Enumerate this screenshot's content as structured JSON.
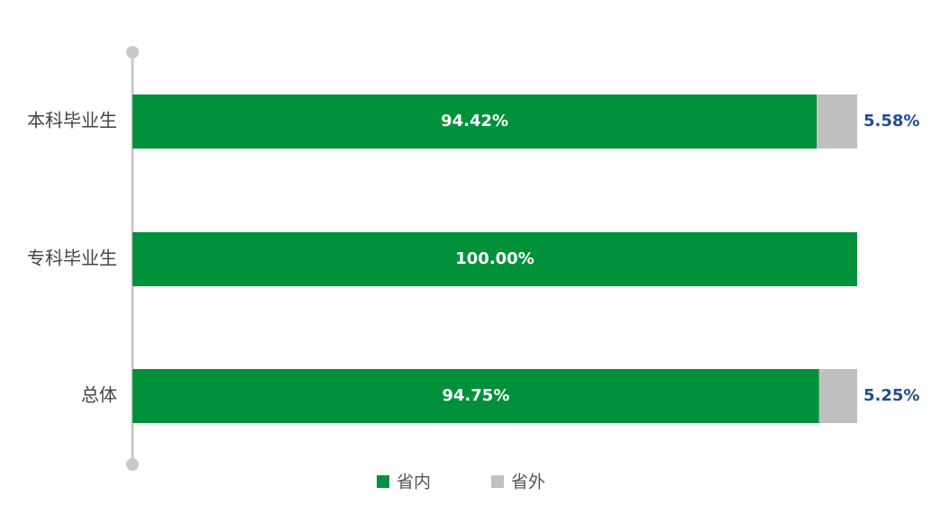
{
  "chart_data": {
    "type": "stacked-bar-horizontal",
    "categories": [
      "本科毕业生",
      "专科毕业生",
      "总体"
    ],
    "series": [
      {
        "name": "省内",
        "color": "#00913a",
        "values": [
          94.42,
          100,
          94.75
        ],
        "value_labels": [
          "94.42%",
          "100.00%",
          "94.75%"
        ]
      },
      {
        "name": "省外",
        "color": "#c0c0c0",
        "values": [
          5.58,
          0,
          5.25
        ],
        "value_labels": [
          "5.58%",
          null,
          "5.25%"
        ]
      }
    ],
    "xlim": [
      0,
      100
    ],
    "legend": "bottom"
  }
}
